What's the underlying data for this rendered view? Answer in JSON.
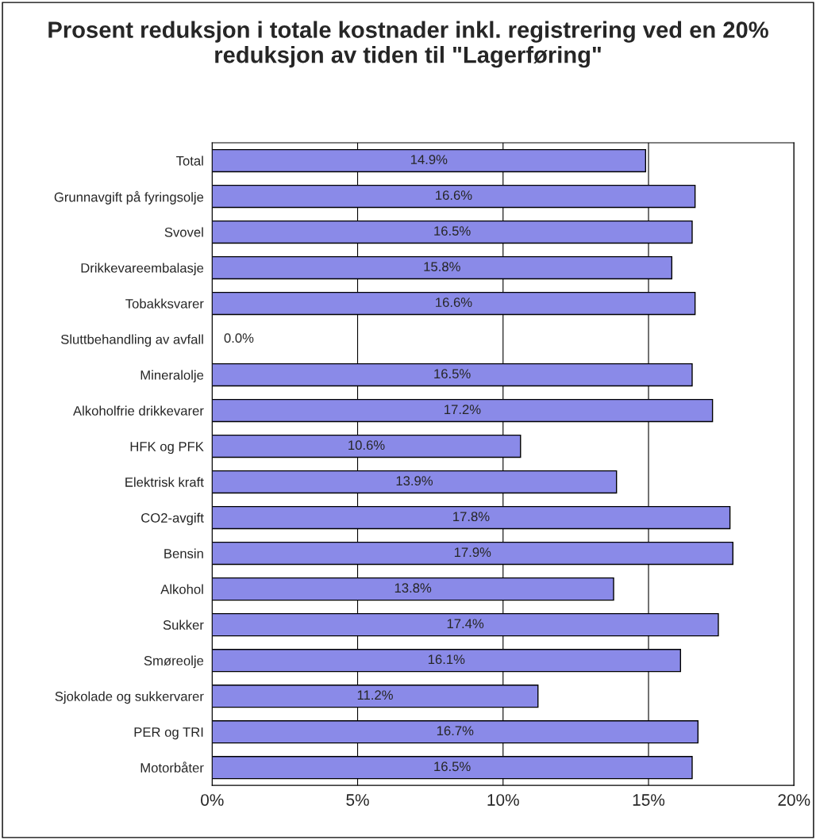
{
  "chart_data": {
    "type": "bar",
    "orientation": "horizontal",
    "title": "Prosent reduksjon i totale kostnader inkl. registrering ved en 20% reduksjon av tiden til \"Lagerføring\"",
    "categories": [
      "Total",
      "Grunnavgift på fyringsolje",
      "Svovel",
      "Drikkevareembalasje",
      "Tobakksvarer",
      "Sluttbehandling av avfall",
      "Mineralolje",
      "Alkoholfrie drikkevarer",
      "HFK og PFK",
      "Elektrisk kraft",
      "CO2-avgift",
      "Bensin",
      "Alkohol",
      "Sukker",
      "Smøreolje",
      "Sjokolade og sukkervarer",
      "PER og TRI",
      "Motorbåter"
    ],
    "values": [
      14.9,
      16.6,
      16.5,
      15.8,
      16.6,
      0.0,
      16.5,
      17.2,
      10.6,
      13.9,
      17.8,
      17.9,
      13.8,
      17.4,
      16.1,
      11.2,
      16.7,
      16.5
    ],
    "value_labels": [
      "14.9%",
      "16.6%",
      "16.5%",
      "15.8%",
      "16.6%",
      "0.0%",
      "16.5%",
      "17.2%",
      "10.6%",
      "13.9%",
      "17.8%",
      "17.9%",
      "13.8%",
      "17.4%",
      "16.1%",
      "11.2%",
      "16.7%",
      "16.5%"
    ],
    "color": "#8a8ae8",
    "xlim": [
      0,
      20
    ],
    "xticks": [
      {
        "value": 0,
        "label": "0%"
      },
      {
        "value": 5,
        "label": "5%"
      },
      {
        "value": 10,
        "label": "10%"
      },
      {
        "value": 15,
        "label": "15%"
      },
      {
        "value": 20,
        "label": "20%"
      }
    ],
    "grid": "x",
    "legend": false
  }
}
